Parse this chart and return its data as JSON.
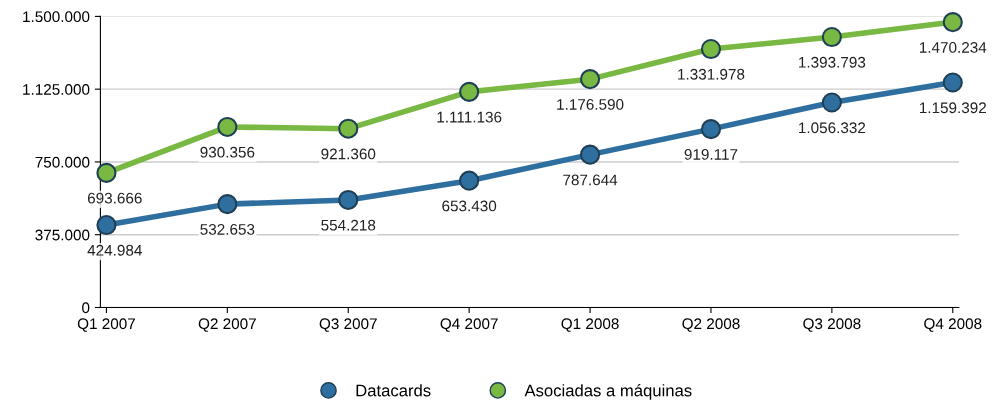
{
  "chart_data": {
    "type": "line",
    "categories": [
      "Q1 2007",
      "Q2 2007",
      "Q3 2007",
      "Q4 2007",
      "Q1 2008",
      "Q2 2008",
      "Q3 2008",
      "Q4 2008"
    ],
    "series": [
      {
        "name": "Datacards",
        "color": "#2f6fa0",
        "values": [
          424984,
          532653,
          554218,
          653430,
          787644,
          919117,
          1056332,
          1159392
        ],
        "value_labels": [
          "424.984",
          "532.653",
          "554.218",
          "653.430",
          "787.644",
          "919.117",
          "1.056.332",
          "1.159.392"
        ]
      },
      {
        "name": "Asociadas a máquinas",
        "color": "#78b843",
        "values": [
          693666,
          930356,
          921360,
          1111136,
          1176590,
          1331978,
          1393793,
          1470234
        ],
        "value_labels": [
          "693.666",
          "930.356",
          "921.360",
          "1.111.136",
          "1.176.590",
          "1.331.978",
          "1.393.793",
          "1.470.234"
        ]
      }
    ],
    "ylim": [
      0,
      1500000
    ],
    "yticks": [
      {
        "value": 0,
        "label": "0"
      },
      {
        "value": 375000,
        "label": "375.000"
      },
      {
        "value": 750000,
        "label": "750.000"
      },
      {
        "value": 1125000,
        "label": "1.125.000"
      },
      {
        "value": 1500000,
        "label": "1.500.000"
      }
    ],
    "grid": "y",
    "legend": "bottom",
    "marker": "circle",
    "line_style": "solid"
  }
}
